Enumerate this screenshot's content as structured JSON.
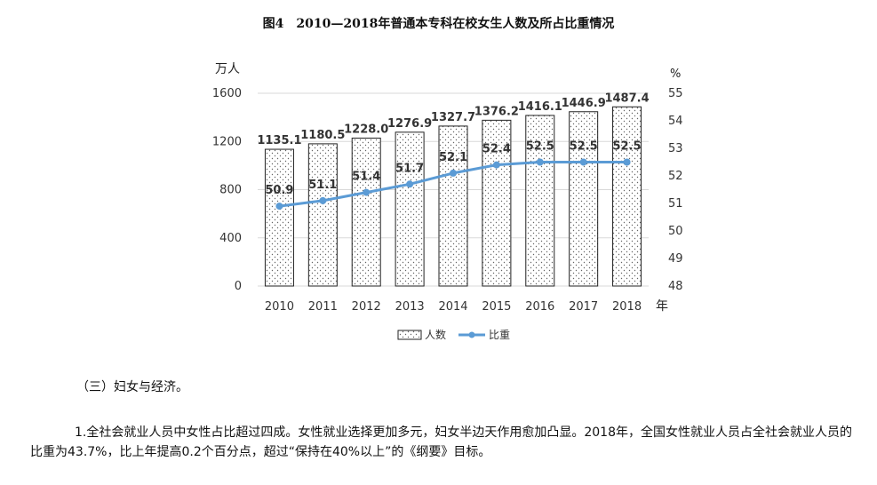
{
  "figure": {
    "title": "图4　2010—2018年普通本专科在校女生人数及所占比重情况"
  },
  "chart_data": {
    "type": "bar",
    "categories": [
      "2010",
      "2011",
      "2012",
      "2013",
      "2014",
      "2015",
      "2016",
      "2017",
      "2018"
    ],
    "series": [
      {
        "name": "人数",
        "type": "bar",
        "axis": "left",
        "values": [
          1135.1,
          1180.5,
          1228.0,
          1276.9,
          1327.7,
          1376.2,
          1416.1,
          1446.9,
          1487.4
        ],
        "labels": [
          "1135.1",
          "1180.5",
          "1228.0",
          "1276.9",
          "1327.7",
          "1376.2",
          "1416.1",
          "1446.9",
          "1487.4"
        ]
      },
      {
        "name": "比重",
        "type": "line",
        "axis": "right",
        "values": [
          50.9,
          51.1,
          51.4,
          51.7,
          52.1,
          52.4,
          52.5,
          52.5,
          52.5
        ],
        "labels": [
          "50.9",
          "51.1",
          "51.4",
          "51.7",
          "52.1",
          "52.4",
          "52.5",
          "52.5",
          "52.5"
        ]
      }
    ],
    "y_left": {
      "label": "万人",
      "range": [
        0,
        1600
      ],
      "ticks": [
        "0",
        "400",
        "800",
        "1200",
        "1600"
      ]
    },
    "y_right": {
      "label": "%",
      "range": [
        48,
        55
      ],
      "ticks": [
        "48",
        "49",
        "50",
        "51",
        "52",
        "53",
        "54",
        "55"
      ]
    },
    "xlabel": "年",
    "grid": true,
    "legend": "bottom",
    "colors": {
      "bar_fill": "#ffffff",
      "bar_stroke": "#222222",
      "line": "#5b9bd5",
      "grid": "#d9d9d9"
    }
  },
  "text": {
    "section_heading": "（三）妇女与经济。",
    "paragraph": "1.全社会就业人员中女性占比超过四成。女性就业选择更加多元，妇女半边天作用愈加凸显。2018年，全国女性就业人员占全社会就业人员的比重为43.7%，比上年提高0.2个百分点，超过“保持在40%以上”的《纲要》目标。"
  }
}
